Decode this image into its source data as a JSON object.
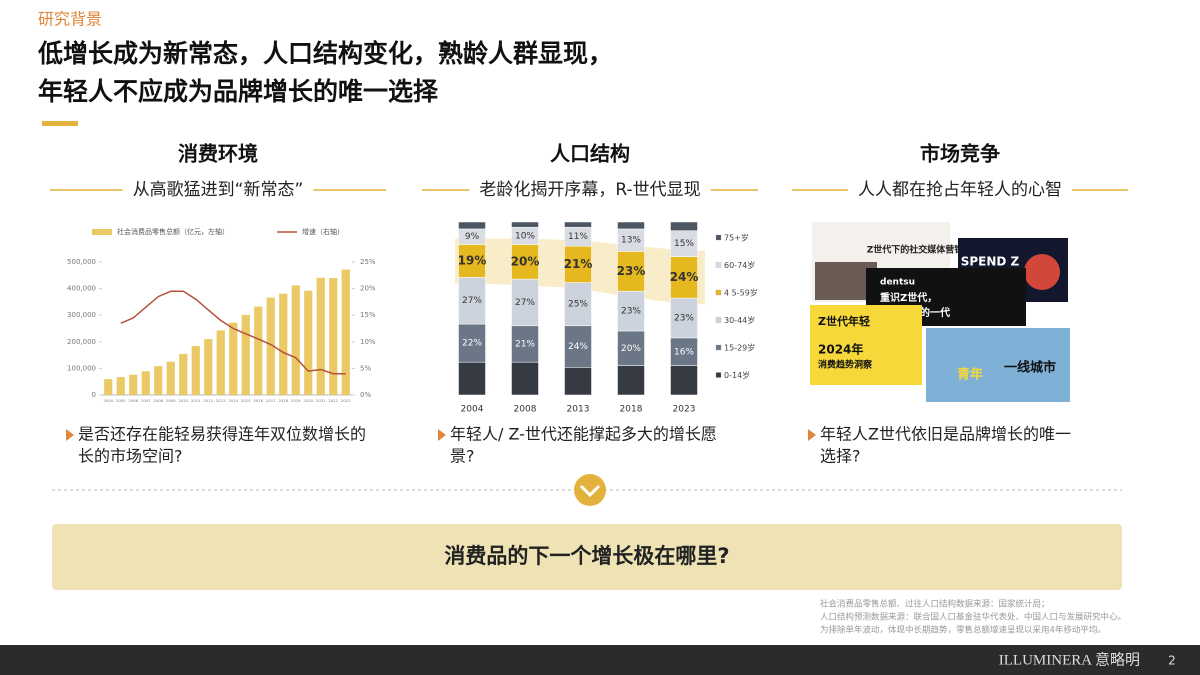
{
  "header": {
    "tag": "研究背景",
    "title_lines": [
      "低增长成为新常态，人口结构变化，熟龄人群显现，",
      "年轻人不应成为品牌增长的唯一选择"
    ]
  },
  "columns": [
    {
      "heading": "消费环境",
      "subheading": "从高歌猛进到“新常态”",
      "question_lines": [
        "是否还存在能轻易获得连年双位数增长的",
        "长的市场空间?"
      ]
    },
    {
      "heading": "人口结构",
      "subheading": "老龄化揭开序幕，R-世代显现",
      "question_lines": [
        "年轻人/ Z-世代还能撑起多大的增长愿",
        "景?"
      ]
    },
    {
      "heading": "市场竞争",
      "subheading": "人人都在抢占年轻人的心智",
      "question_lines": [
        "年轻人Z世代依旧是品牌增长的唯一",
        "选择?"
      ]
    }
  ],
  "chart_data": [
    {
      "type": "bar-line",
      "categories": [
        "2004",
        "2005",
        "2006",
        "2007",
        "2008",
        "2009",
        "2010",
        "2011",
        "2012",
        "2013",
        "2014",
        "2015",
        "2016",
        "2017",
        "2018",
        "2019",
        "2020",
        "2021",
        "2022",
        "2023"
      ],
      "series": [
        {
          "name": "社会消费品零售总额（亿元，左轴）",
          "color": "#ebc966",
          "values": [
            59501,
            67177,
            76410,
            89210,
            108488,
            125343,
            154554,
            183919,
            210307,
            242843,
            271896,
            300931,
            332316,
            366262,
            380987,
            411649,
            391981,
            440823,
            439733,
            471495
          ]
        },
        {
          "name": "增速（右轴）",
          "color": "#b5523b",
          "axis": "y2",
          "values": [
            null,
            13.5,
            14.5,
            16.5,
            18.5,
            19.5,
            19.5,
            18,
            16,
            14,
            12.5,
            11.5,
            10.5,
            9.5,
            8,
            7,
            4.5,
            4.8,
            4,
            4
          ]
        }
      ],
      "ylim": [
        0,
        500000
      ],
      "yticks": [
        0,
        {
          "value": 100000,
          "label": "100,000"
        },
        {
          "value": 200000,
          "label": "200,000"
        },
        {
          "value": 300000,
          "label": "300,000"
        },
        {
          "value": 400000,
          "label": "400,000"
        },
        {
          "value": 500000,
          "label": "500,000"
        }
      ],
      "y2lim": [
        0,
        25
      ],
      "y2ticks": [
        {
          "value": 0,
          "label": "0%"
        },
        {
          "value": 5,
          "label": "5%"
        },
        {
          "value": 10,
          "label": "10%"
        },
        {
          "value": 15,
          "label": "15%"
        },
        {
          "value": 20,
          "label": "20%"
        },
        {
          "value": 25,
          "label": "25%"
        }
      ]
    },
    {
      "type": "stacked-bar",
      "categories": [
        "2004",
        "2008",
        "2013",
        "2018",
        "2023"
      ],
      "ylim": [
        0,
        100
      ],
      "series": [
        {
          "name": "75+岁",
          "color": "#4c5562",
          "values": [
            4,
            3,
            3,
            4,
            5
          ]
        },
        {
          "name": "60-74岁",
          "color": "#d9dde3",
          "values": [
            9,
            10,
            11,
            13,
            15
          ],
          "value_labels": [
            "9%",
            "10%",
            "11%",
            "13%",
            "15%"
          ]
        },
        {
          "name": "4 5-59岁",
          "color": "#e6b820",
          "values": [
            19,
            20,
            21,
            23,
            24
          ],
          "value_labels": [
            "19%",
            "20%",
            "21%",
            "23%",
            "24%"
          ]
        },
        {
          "name": "30-44岁",
          "color": "#cdd3dc",
          "values": [
            27,
            27,
            25,
            23,
            23
          ],
          "value_labels": [
            "27%",
            "27%",
            "25%",
            "23%",
            "23%"
          ]
        },
        {
          "name": "15-29岁",
          "color": "#6b7686",
          "values": [
            22,
            21,
            24,
            20,
            16
          ],
          "value_labels": [
            "22%",
            "21%",
            "24%",
            "20%",
            "16%"
          ]
        },
        {
          "name": "0-14岁",
          "color": "#363b43",
          "values": [
            19,
            19,
            16,
            17,
            17
          ]
        }
      ]
    }
  ],
  "collage": {
    "texts": [
      "Z世代下的社交媒体营销",
      "SPEND Z",
      "dentsu",
      "重识Z世代，",
      "不被定义的一代",
      "Z世代年轻",
      "2024年",
      "消费趋势洞察",
      "青年",
      "一线城市"
    ]
  },
  "banner": {
    "text": "消费品的下一个增长极在哪里?"
  },
  "sources": [
    "社会消费品零售总额、过往人口结构数据来源：国家统计局；",
    "人口结构预测数据来源：联合国人口基金驻华代表处、中国人口与发展研究中心。",
    "为排除单年波动，体现中长期趋势，零售总额增速呈现以采用4年移动平均。"
  ],
  "footer": {
    "brand": "ILLUMINERA 意略明",
    "page": "2"
  }
}
